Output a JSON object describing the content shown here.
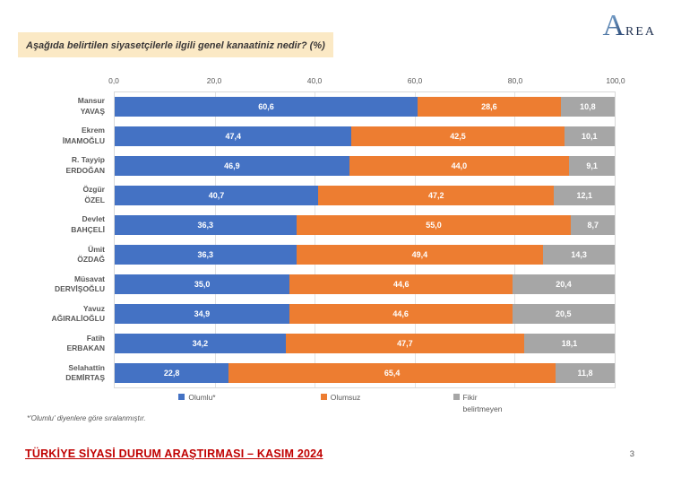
{
  "logo": {
    "text_large": "A",
    "text_small": "REA"
  },
  "title": {
    "text": "Aşağıda belirtilen siyasetçilerle ilgili genel kanaatiniz nedir? (%)"
  },
  "chart_data": {
    "type": "bar",
    "orientation": "horizontal",
    "stacked": true,
    "xlim": [
      0,
      100
    ],
    "x_ticks": [
      "0,0",
      "20,0",
      "40,0",
      "60,0",
      "80,0",
      "100,0"
    ],
    "grid": "vertical",
    "legend_position": "bottom",
    "categories": [
      {
        "line1": "Mansur",
        "line2": "YAVAŞ"
      },
      {
        "line1": "Ekrem",
        "line2": "İMAMOĞLU"
      },
      {
        "line1": "R. Tayyip",
        "line2": "ERDOĞAN"
      },
      {
        "line1": "Özgür",
        "line2": "ÖZEL"
      },
      {
        "line1": "Devlet",
        "line2": "BAHÇELİ"
      },
      {
        "line1": "Ümit",
        "line2": "ÖZDAĞ"
      },
      {
        "line1": "Müsavat",
        "line2": "DERVİŞOĞLU"
      },
      {
        "line1": "Yavuz",
        "line2": "AĞIRALİOĞLU"
      },
      {
        "line1": "Fatih",
        "line2": "ERBAKAN"
      },
      {
        "line1": "Selahattin",
        "line2": "DEMİRTAŞ"
      }
    ],
    "series": [
      {
        "name": "Olumlu*",
        "color": "#4472c4",
        "values": [
          60.6,
          47.4,
          46.9,
          40.7,
          36.3,
          36.3,
          35.0,
          34.9,
          34.2,
          22.8
        ]
      },
      {
        "name": "Olumsuz",
        "color": "#ed7d31",
        "values": [
          28.6,
          42.5,
          44.0,
          47.2,
          55.0,
          49.4,
          44.6,
          44.6,
          47.7,
          65.4
        ]
      },
      {
        "name": "Fikir belirtmeyen",
        "color": "#a6a6a6",
        "values": [
          10.8,
          10.1,
          9.1,
          12.1,
          8.7,
          14.3,
          20.4,
          20.5,
          18.1,
          11.8
        ]
      }
    ]
  },
  "footnote": "*'Olumlu' diyenlere göre sıralanmıştır.",
  "footer": {
    "title": "TÜRKİYE SİYASİ DURUM ARAŞTIRMASI – KASIM 2024",
    "page_number": "3"
  },
  "colors": {
    "positive": "#4472c4",
    "negative": "#ed7d31",
    "no_opinion": "#a6a6a6",
    "title_highlight": "#fbe9c5",
    "footer_red": "#c00000"
  }
}
